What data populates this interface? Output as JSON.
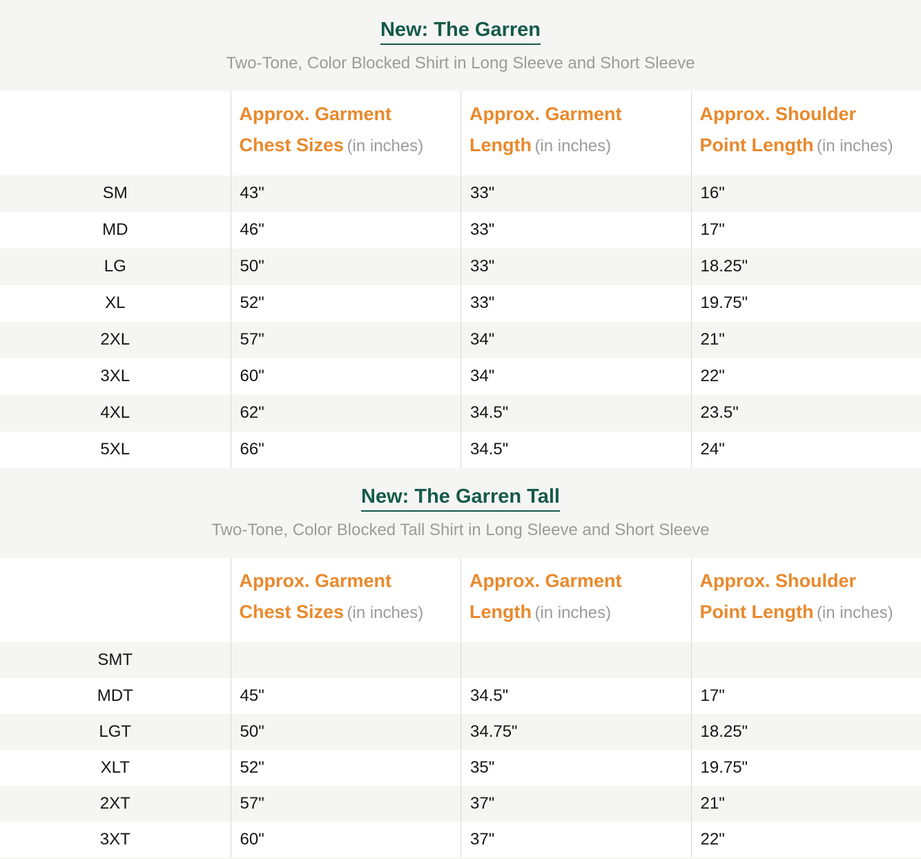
{
  "colors": {
    "title_green": "#155a4b",
    "header_orange": "#e8892c",
    "muted_gray": "#9b9b9b",
    "band_gray": "#f5f5f3",
    "border_gray": "#d9d9d9"
  },
  "sections": [
    {
      "title": "New: The Garren",
      "subtitle": "Two-Tone, Color Blocked Shirt in Long Sleeve and Short Sleeve",
      "col_headers": [
        {
          "line1": "Approx. Garment",
          "line2": "Chest Sizes",
          "note": "(in inches)"
        },
        {
          "line1": "Approx. Garment",
          "line2": "Length",
          "note": "(in inches)"
        },
        {
          "line1": "Approx. Shoulder",
          "line2": "Point Length",
          "note": "(in inches)"
        }
      ],
      "rows": [
        {
          "size": "SM",
          "chest": "43\"",
          "length": "33\"",
          "shoulder": "16\""
        },
        {
          "size": "MD",
          "chest": "46\"",
          "length": "33\"",
          "shoulder": "17\""
        },
        {
          "size": "LG",
          "chest": "50\"",
          "length": "33\"",
          "shoulder": "18.25\""
        },
        {
          "size": "XL",
          "chest": "52\"",
          "length": "33\"",
          "shoulder": "19.75\""
        },
        {
          "size": "2XL",
          "chest": "57\"",
          "length": "34\"",
          "shoulder": "21\""
        },
        {
          "size": "3XL",
          "chest": "60\"",
          "length": "34\"",
          "shoulder": "22\""
        },
        {
          "size": "4XL",
          "chest": "62\"",
          "length": "34.5\"",
          "shoulder": "23.5\""
        },
        {
          "size": "5XL",
          "chest": "66\"",
          "length": "34.5\"",
          "shoulder": "24\""
        }
      ]
    },
    {
      "title": "New: The Garren Tall",
      "subtitle": "Two-Tone, Color Blocked Tall Shirt in Long Sleeve and Short Sleeve",
      "col_headers": [
        {
          "line1": "Approx. Garment",
          "line2": "Chest Sizes",
          "note": "(in inches)"
        },
        {
          "line1": "Approx. Garment",
          "line2": "Length",
          "note": "(in inches)"
        },
        {
          "line1": "Approx. Shoulder",
          "line2": "Point Length",
          "note": "(in inches)"
        }
      ],
      "rows": [
        {
          "size": "SMT",
          "chest": "",
          "length": "",
          "shoulder": ""
        },
        {
          "size": "MDT",
          "chest": "45\"",
          "length": "34.5\"",
          "shoulder": "17\""
        },
        {
          "size": "LGT",
          "chest": "50\"",
          "length": "34.75\"",
          "shoulder": "18.25\""
        },
        {
          "size": "XLT",
          "chest": "52\"",
          "length": "35\"",
          "shoulder": "19.75\""
        },
        {
          "size": "2XT",
          "chest": "57\"",
          "length": "37\"",
          "shoulder": "21\""
        },
        {
          "size": "3XT",
          "chest": "60\"",
          "length": "37\"",
          "shoulder": "22\""
        }
      ]
    }
  ]
}
